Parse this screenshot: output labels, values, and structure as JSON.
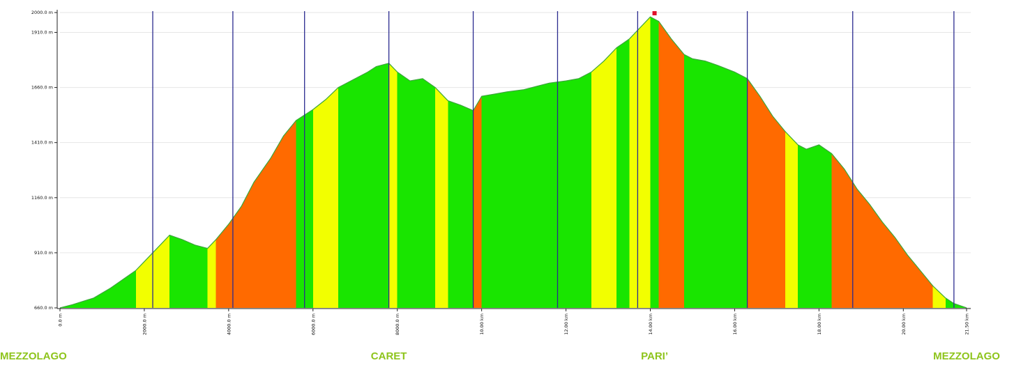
{
  "chart_data": {
    "type": "area",
    "title": "",
    "xlabel": "",
    "ylabel": "",
    "ylim": [
      660,
      2000
    ],
    "xlim": [
      0,
      21.5
    ],
    "y_ticks": [
      660,
      910,
      1160,
      1410,
      1660,
      1910,
      2000
    ],
    "y_tick_labels": [
      "660.0 m",
      "910.0 m",
      "1160.0 m",
      "1410.0 m",
      "1660.0 m",
      "1910.0 m",
      "2000.0 m"
    ],
    "x_ticks": [
      0,
      2,
      4,
      6,
      8,
      10,
      12,
      14,
      16,
      18,
      20,
      21.5
    ],
    "x_tick_labels": [
      "0.0 m",
      "2000.0 m",
      "4000.0 m",
      "6000.0 m",
      "8000.0 m",
      "10.00 km",
      "12.00 km",
      "14.00 km",
      "16.00 km",
      "18.00 km",
      "20.00 km",
      "21.50 km"
    ],
    "vertical_markers": [
      2.2,
      4.1,
      5.8,
      7.8,
      9.8,
      11.8,
      13.7,
      16.3,
      18.8,
      21.2
    ],
    "peak_marker": {
      "x": 14.1,
      "y": 1990,
      "color": "#e0102a"
    },
    "colors": {
      "fill": "#19e500",
      "steep": "#f2ff00",
      "very_steep": "#ff6a00",
      "outline": "#3aa63a",
      "marker_line": "#2b2b8f",
      "place_label": "#8ec41c"
    },
    "series": [
      {
        "x": [
          0,
          0.3,
          0.8,
          1.2,
          1.5,
          1.8,
          2.0,
          2.3,
          2.6,
          2.9,
          3.2,
          3.5,
          3.7,
          4.0,
          4.3,
          4.6,
          5.0,
          5.3,
          5.6,
          6.0,
          6.3,
          6.6,
          7.0,
          7.3,
          7.5,
          7.8,
          8.0,
          8.3,
          8.6,
          8.9,
          9.2,
          9.5,
          9.8,
          10.0,
          10.3,
          10.6,
          11.0,
          11.3,
          11.6,
          12.0,
          12.3,
          12.6,
          12.9,
          13.2,
          13.5,
          13.8,
          14.0,
          14.2,
          14.5,
          14.8,
          15.0,
          15.3,
          15.6,
          16.0,
          16.3,
          16.6,
          16.9,
          17.2,
          17.5,
          17.7,
          18.0,
          18.3,
          18.6,
          18.9,
          19.2,
          19.5,
          19.8,
          20.1,
          20.4,
          20.7,
          21.0,
          21.2,
          21.5
        ],
        "y": [
          660,
          675,
          705,
          750,
          790,
          830,
          870,
          930,
          990,
          970,
          945,
          930,
          970,
          1040,
          1120,
          1230,
          1340,
          1440,
          1510,
          1560,
          1605,
          1660,
          1700,
          1730,
          1755,
          1770,
          1730,
          1690,
          1700,
          1660,
          1600,
          1580,
          1555,
          1620,
          1630,
          1640,
          1650,
          1665,
          1680,
          1690,
          1700,
          1730,
          1780,
          1840,
          1880,
          1940,
          1980,
          1960,
          1880,
          1810,
          1790,
          1780,
          1760,
          1730,
          1700,
          1620,
          1530,
          1460,
          1400,
          1380,
          1400,
          1360,
          1290,
          1200,
          1130,
          1050,
          980,
          900,
          830,
          760,
          705,
          680,
          660
        ]
      }
    ]
  },
  "places": [
    {
      "name": "MEZZOLAGO",
      "km": 0
    },
    {
      "name": "CARET",
      "km": 7.8
    },
    {
      "name": "PARI’",
      "km": 14.1
    },
    {
      "name": "MEZZOLAGO",
      "km": 21.5
    }
  ]
}
